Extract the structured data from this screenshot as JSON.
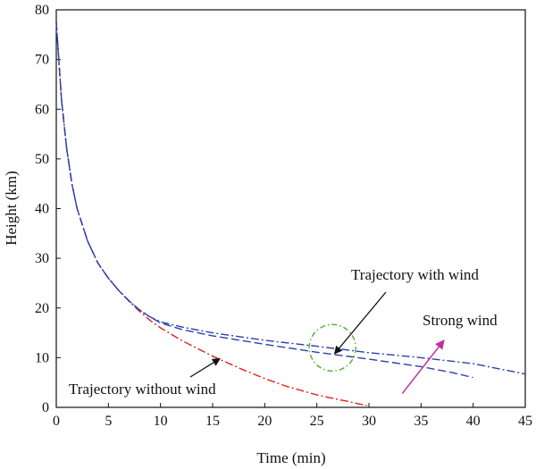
{
  "chart_data": {
    "type": "line",
    "xlabel": "Time (min)",
    "ylabel": "Height (km)",
    "xlim": [
      0,
      45
    ],
    "ylim": [
      0,
      80
    ],
    "xticks": [
      0,
      5,
      10,
      15,
      20,
      25,
      30,
      35,
      40,
      45
    ],
    "yticks": [
      0,
      10,
      20,
      30,
      40,
      50,
      60,
      70,
      80
    ],
    "grid": false,
    "legend": "none",
    "series": [
      {
        "color": "#e0201a",
        "style": "dash-dot",
        "x": [
          0,
          0.5,
          1,
          1.5,
          2,
          3,
          4,
          5,
          6,
          7,
          8,
          9,
          10,
          12,
          15,
          18,
          20,
          22,
          25,
          27,
          28,
          29,
          29.8
        ],
        "y": [
          77.5,
          62,
          52,
          45,
          40,
          33.5,
          29,
          26,
          23.5,
          21.3,
          19.3,
          17.5,
          16.0,
          13.5,
          10.3,
          7.5,
          5.8,
          4.3,
          2.5,
          1.6,
          1.2,
          0.7,
          0.4
        ]
      },
      {
        "color": "#2a40b0",
        "style": "dash",
        "x": [
          0,
          0.5,
          1,
          1.5,
          2,
          3,
          4,
          5,
          6,
          7,
          8,
          9,
          10,
          12,
          15,
          20,
          25,
          30,
          35,
          38,
          40
        ],
        "y": [
          77.5,
          62,
          52,
          45,
          40,
          33.5,
          29,
          26,
          23.5,
          21.4,
          19.6,
          18.2,
          17.0,
          15.7,
          14.4,
          12.7,
          11.1,
          9.7,
          8.2,
          7.0,
          6.0
        ]
      },
      {
        "color": "#2a40b0",
        "style": "dash-dot",
        "x": [
          0,
          0.5,
          1,
          1.5,
          2,
          3,
          4,
          5,
          6,
          7,
          8,
          9,
          10,
          12,
          15,
          20,
          25,
          30,
          35,
          40,
          45
        ],
        "y": [
          77.5,
          62,
          52,
          45,
          40,
          33.5,
          29,
          26,
          23.5,
          21.4,
          19.6,
          18.2,
          17.2,
          16.2,
          15.0,
          13.5,
          12.3,
          11.0,
          10.0,
          8.8,
          6.7
        ]
      }
    ],
    "annotations": [
      {
        "text": "Trajectory with wind",
        "color": "#111111"
      },
      {
        "text": "Strong wind",
        "color": "#111111"
      },
      {
        "text": "Trajectory without wind",
        "color": "#111111"
      }
    ],
    "highlight_circle": {
      "cx": 26.5,
      "cy": 12,
      "color": "#5ab23a"
    },
    "strong_wind_arrow": {
      "color": "#c0309a",
      "from": [
        33.2,
        2.8
      ],
      "to": [
        37.2,
        13.5
      ]
    }
  }
}
